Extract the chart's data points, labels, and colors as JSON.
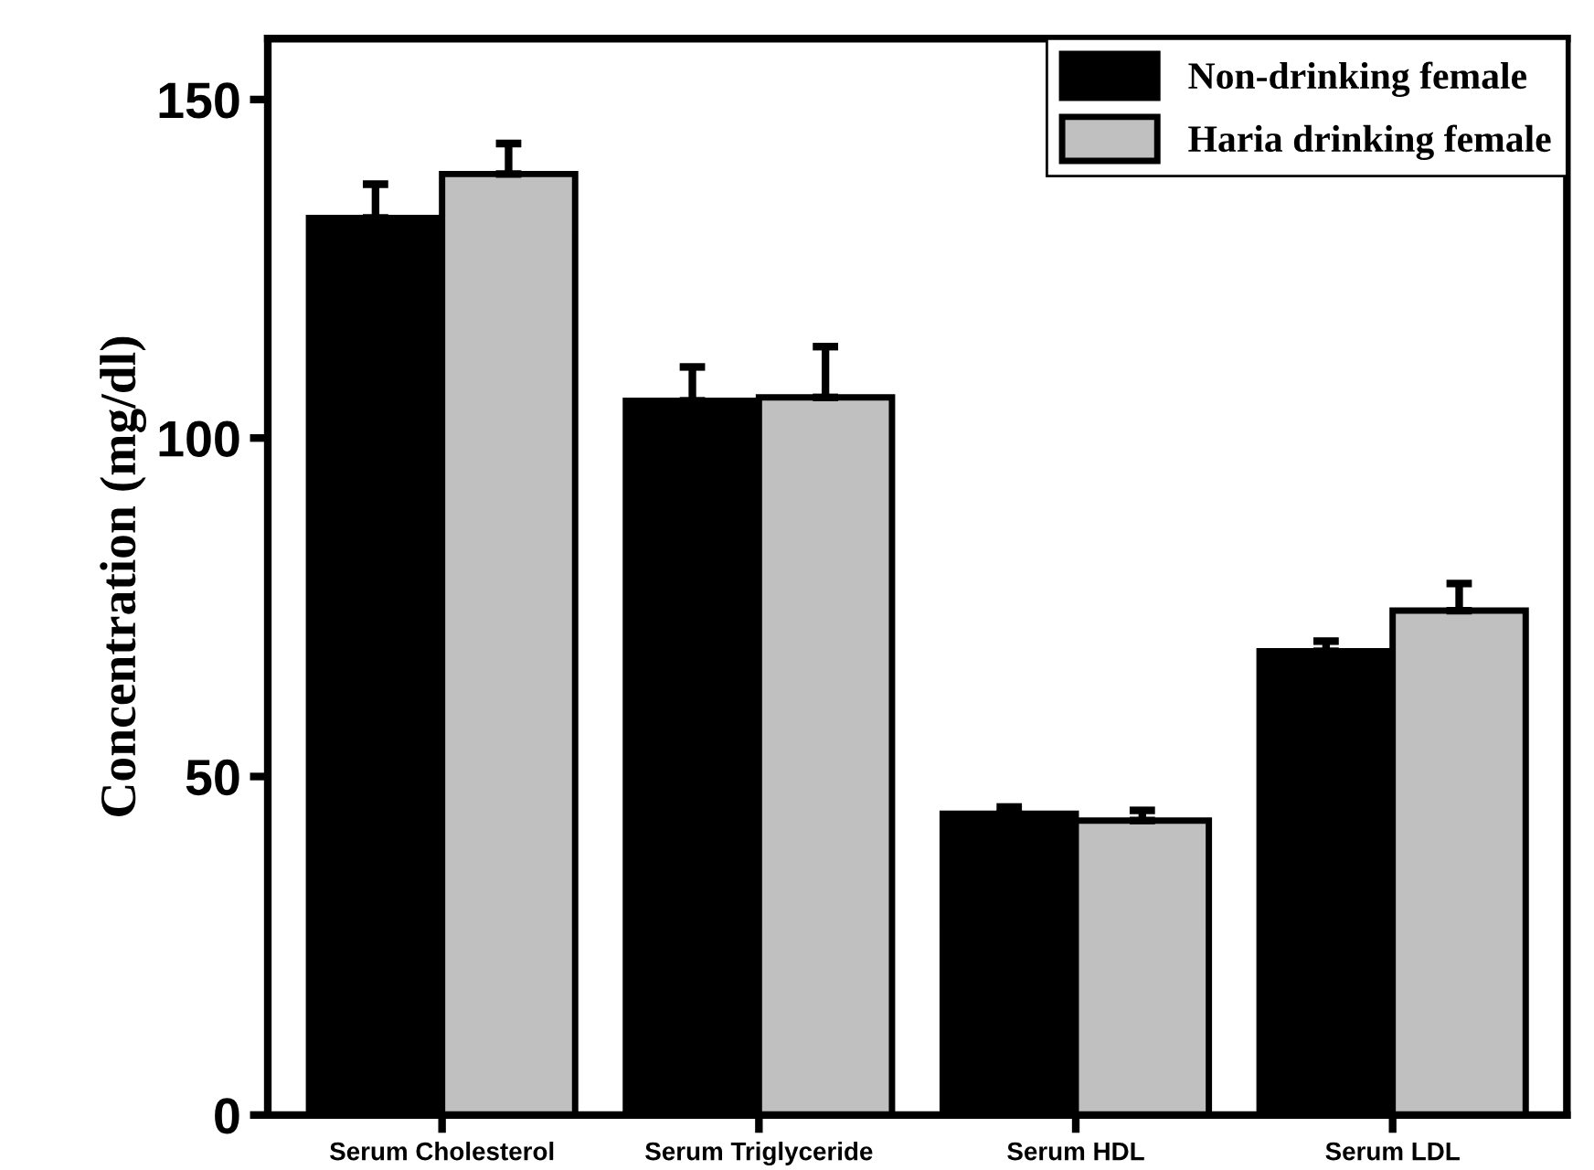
{
  "chart_data": {
    "type": "bar",
    "ylabel": "Concentration (mg/dl)",
    "categories": [
      "Serum Cholesterol",
      "Serum Triglyceride",
      "Serum HDL",
      "Serum LDL"
    ],
    "series": [
      {
        "name": "Non-drinking female",
        "color": "#000000",
        "values": [
          132.5,
          105.5,
          44.5,
          68.5
        ],
        "errors": [
          5,
          5,
          1,
          1.5
        ]
      },
      {
        "name": "Haria drinking female",
        "color": "#c0c0c0",
        "values": [
          139,
          106,
          43.5,
          74.5
        ],
        "errors": [
          4.5,
          7.5,
          1.5,
          4
        ]
      }
    ],
    "ylim": [
      0,
      159
    ],
    "yticks": [
      0,
      50,
      100,
      150
    ],
    "grid": false,
    "legend": "top right"
  }
}
